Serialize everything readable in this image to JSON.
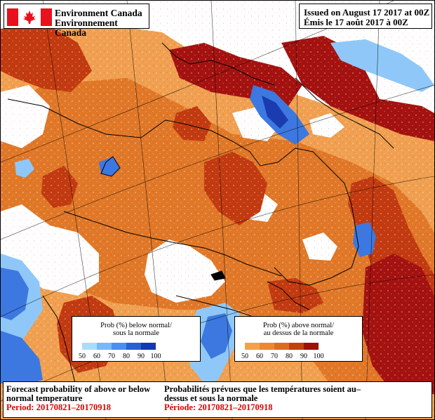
{
  "header": {
    "agency_en": "Environment Canada",
    "agency_fr": "Environnement Canada",
    "issued_en": "Issued on August 17 2017 at 00Z",
    "issued_fr": "Émis le 17 août 2017 à 00Z"
  },
  "legend_below": {
    "title_line1": "Prob (%) below normal/",
    "title_line2": "sous la normale",
    "ticks": [
      "50",
      "60",
      "70",
      "80",
      "90",
      "100"
    ],
    "colors": [
      "#a8dcff",
      "#78b8f8",
      "#4a8ef0",
      "#2a5ed8",
      "#1438b0"
    ]
  },
  "legend_above": {
    "title_line1": "Prob (%) above normal/",
    "title_line2": "au dessus de la normale",
    "ticks": [
      "50",
      "60",
      "70",
      "80",
      "90",
      "100"
    ],
    "colors": [
      "#f2a24a",
      "#ec8830",
      "#e06a20",
      "#c44010",
      "#a01008"
    ]
  },
  "footer": {
    "title_en": "Forecast probability of above or below normal temperature",
    "period_en": "Period: 20170821–20170918",
    "title_fr": "Probabilités prévues que les températures soient au–dessus et sous la normale",
    "period_fr": "Période: 20170821–20170918"
  },
  "map": {
    "colors": {
      "above_light": "#f0a050",
      "above_mid": "#e07828",
      "above_strong": "#c23a10",
      "above_max": "#a41210",
      "below_light": "#8fc8f8",
      "below_mid": "#3c78e0",
      "below_strong": "#1a3cb0",
      "no_signal": "#ffffff",
      "lines": "#000000"
    },
    "icon": "canada-flag-icon"
  }
}
